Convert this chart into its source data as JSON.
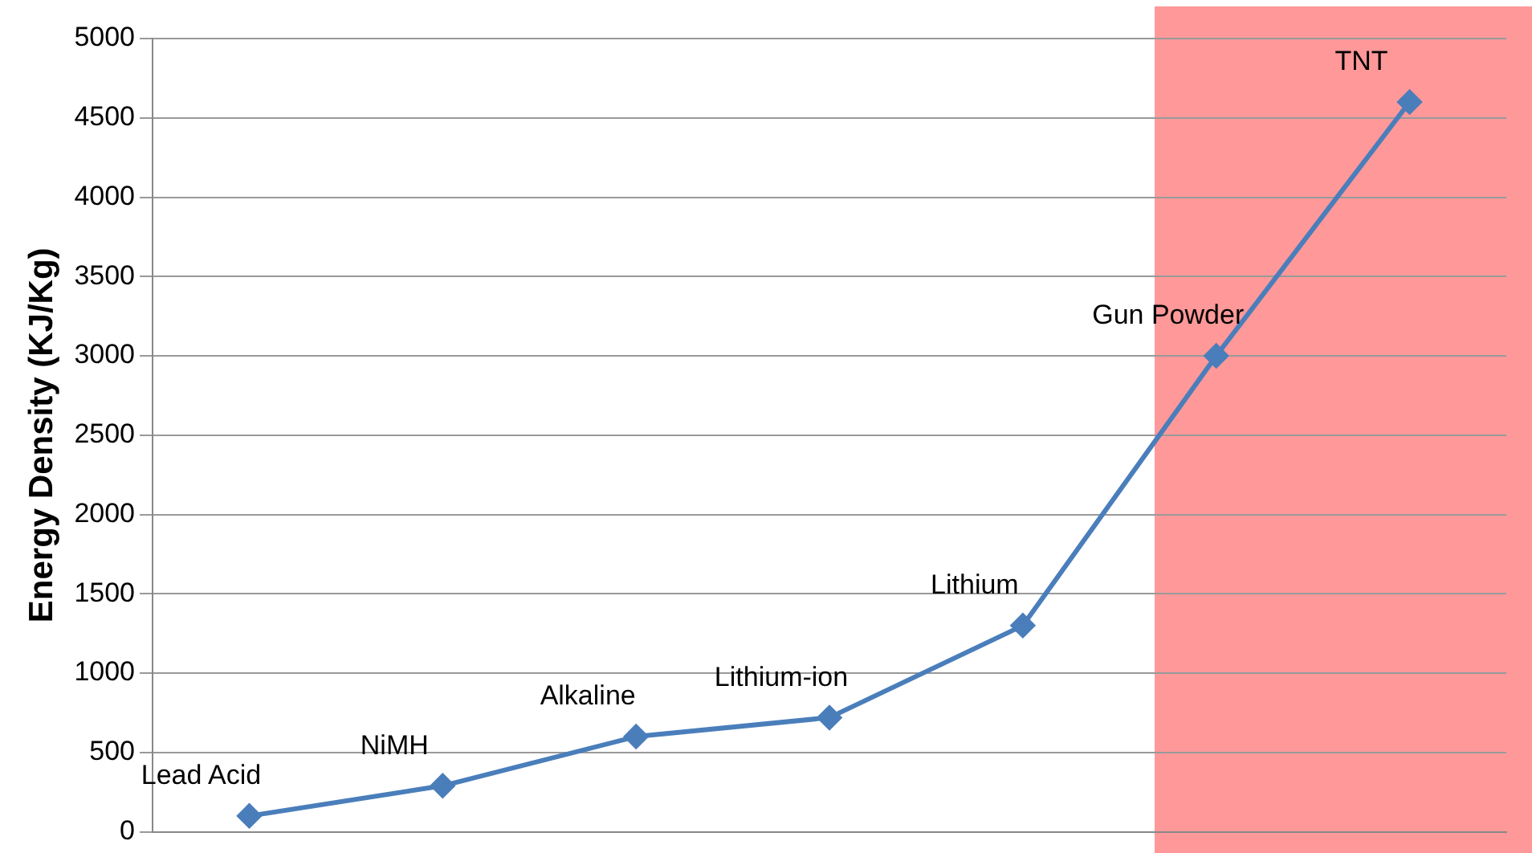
{
  "chart_data": {
    "type": "line",
    "ylabel": "Energy Density (KJ/Kg)",
    "categories": [
      "Lead Acid",
      "NiMH",
      "Alkaline",
      "Lithium-ion",
      "Lithium",
      "Gun Powder",
      "TNT"
    ],
    "series": [
      {
        "color": "#4a7ebb",
        "values": [
          100,
          290,
          600,
          720,
          1300,
          3000,
          4600
        ]
      }
    ],
    "ylim": [
      0,
      5000
    ],
    "yticks": [
      0,
      500,
      1000,
      1500,
      2000,
      2500,
      3000,
      3500,
      4000,
      4500,
      5000
    ],
    "grid": "y",
    "legend": false,
    "marker": "diamond",
    "line_style": "solid",
    "tick_labels": "y"
  }
}
